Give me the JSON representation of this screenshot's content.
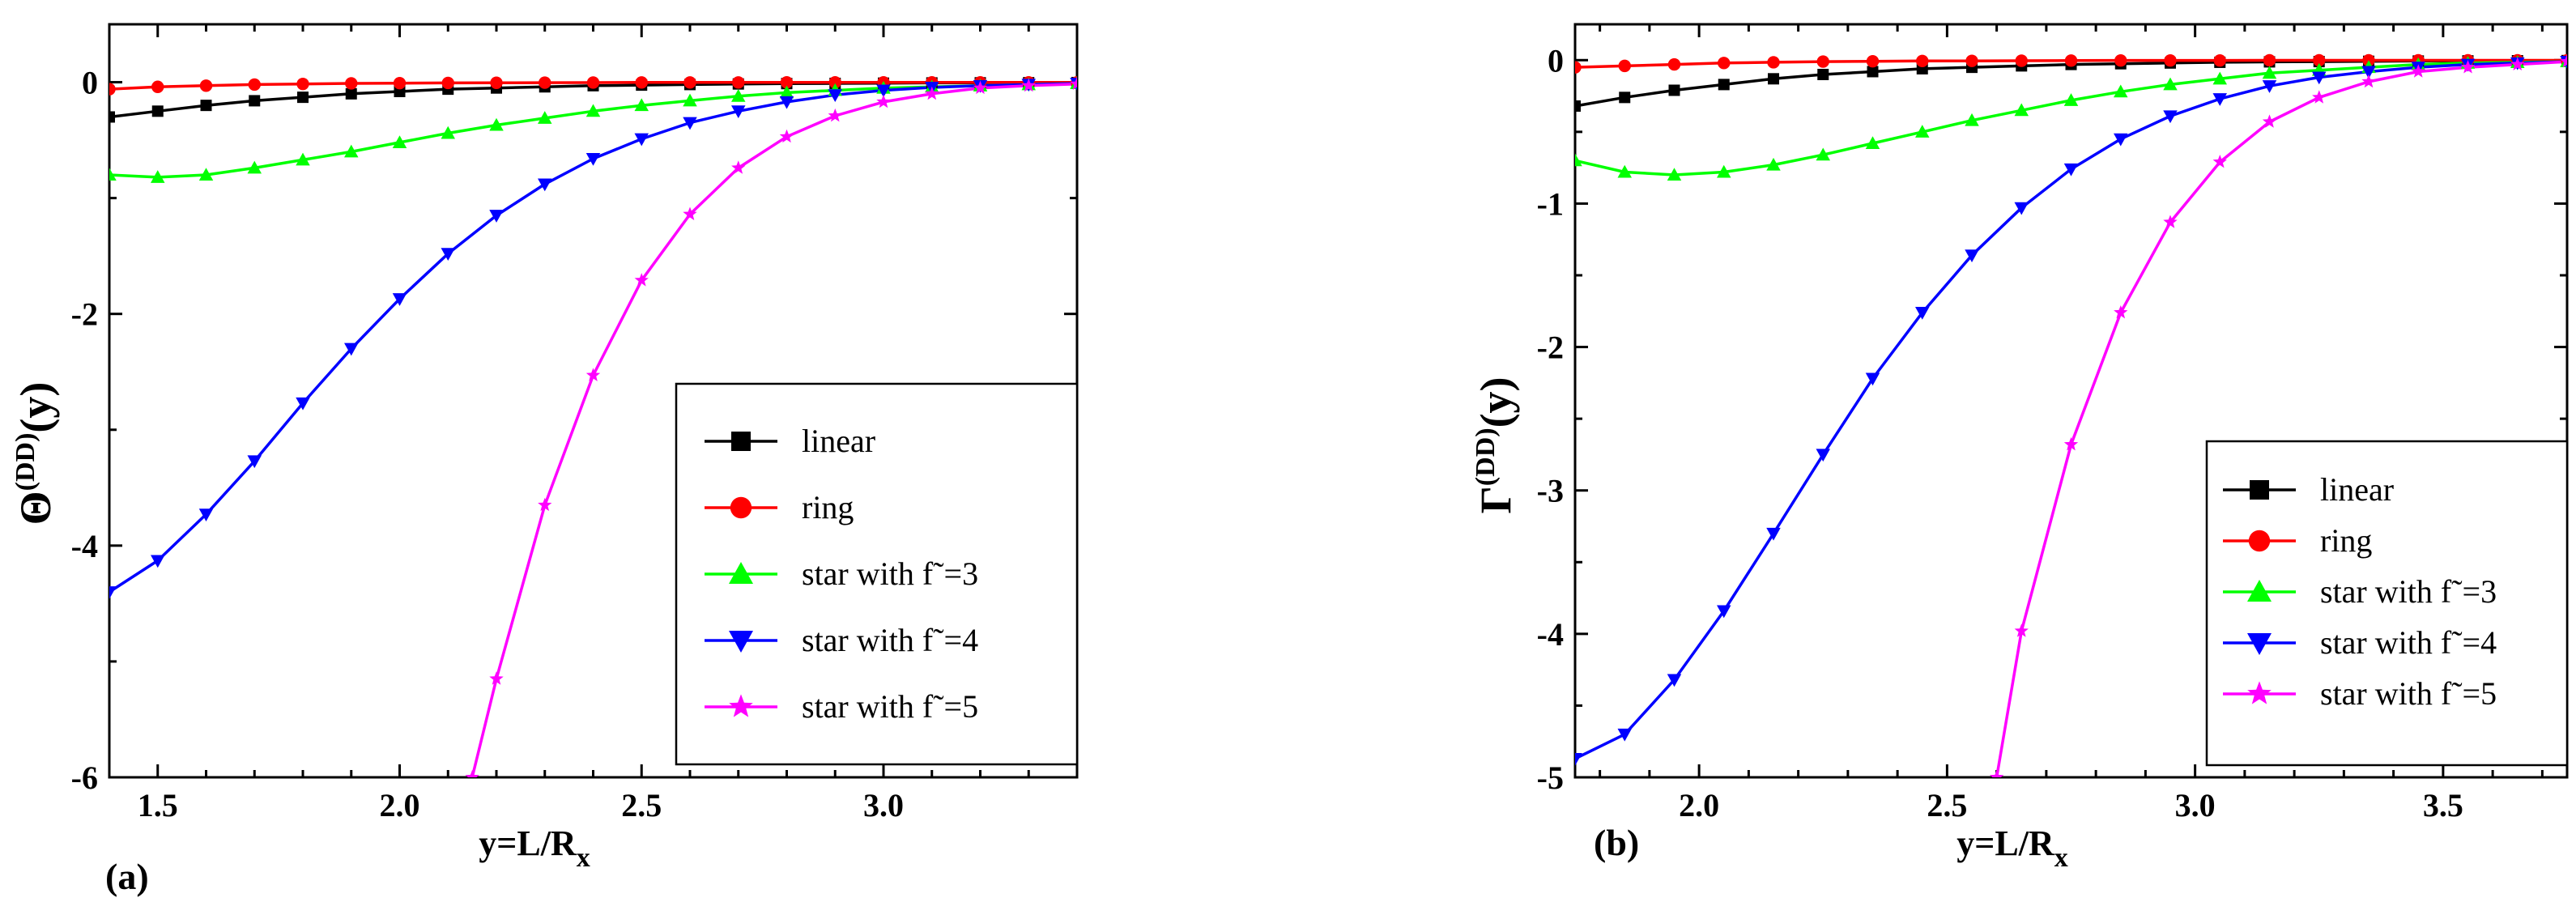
{
  "chart_data": [
    {
      "type": "line",
      "panel_label": "(a)",
      "ylabel": "Θ",
      "ylabel_sup": "(DD)",
      "ylabel_arg": "(y)",
      "xlabel": "y=L/R",
      "xlabel_sub": "x",
      "xlim": [
        1.4,
        3.4
      ],
      "ylim": [
        -6,
        0.5
      ],
      "xticks": [
        1.5,
        2.0,
        2.5,
        3.0
      ],
      "xtick_labels": [
        "1.5",
        "2.0",
        "2.5",
        "3.0"
      ],
      "yticks": [
        0,
        -2,
        -4,
        -6
      ],
      "ytick_labels": [
        "0",
        "-2",
        "-4",
        "-6"
      ],
      "legend_position": "lower-right",
      "series": [
        {
          "name": "linear",
          "color": "#000000",
          "marker": "square",
          "x": [
            1.4,
            1.5,
            1.6,
            1.7,
            1.8,
            1.9,
            2.0,
            2.1,
            2.2,
            2.3,
            2.4,
            2.5,
            2.6,
            2.7,
            2.8,
            2.9,
            3.0,
            3.1,
            3.2,
            3.3,
            3.4
          ],
          "y": [
            -0.3,
            -0.25,
            -0.2,
            -0.16,
            -0.13,
            -0.1,
            -0.08,
            -0.06,
            -0.05,
            -0.04,
            -0.03,
            -0.025,
            -0.02,
            -0.015,
            -0.012,
            -0.01,
            -0.008,
            -0.006,
            -0.005,
            -0.004,
            -0.003
          ]
        },
        {
          "name": "ring",
          "color": "#ff0000",
          "marker": "circle",
          "x": [
            1.4,
            1.5,
            1.6,
            1.7,
            1.8,
            1.9,
            2.0,
            2.1,
            2.2,
            2.3,
            2.4,
            2.5,
            2.6,
            2.7,
            2.8,
            2.9,
            3.0,
            3.1,
            3.2,
            3.3,
            3.4
          ],
          "y": [
            -0.06,
            -0.04,
            -0.03,
            -0.02,
            -0.015,
            -0.01,
            -0.008,
            -0.006,
            -0.005,
            -0.004,
            -0.003,
            -0.002,
            -0.002,
            -0.002,
            -0.001,
            -0.001,
            -0.001,
            -0.001,
            -0.001,
            -0.001,
            -0.001
          ]
        },
        {
          "name": "star with f˜=3",
          "color": "#00ff00",
          "marker": "triangle-up",
          "x": [
            1.4,
            1.5,
            1.6,
            1.7,
            1.8,
            1.9,
            2.0,
            2.1,
            2.2,
            2.3,
            2.4,
            2.5,
            2.6,
            2.7,
            2.8,
            2.9,
            3.0,
            3.1,
            3.2,
            3.3,
            3.4
          ],
          "y": [
            -0.8,
            -0.82,
            -0.8,
            -0.74,
            -0.67,
            -0.6,
            -0.52,
            -0.44,
            -0.37,
            -0.31,
            -0.25,
            -0.2,
            -0.16,
            -0.12,
            -0.09,
            -0.07,
            -0.05,
            -0.04,
            -0.03,
            -0.02,
            -0.01
          ]
        },
        {
          "name": "star with f˜=4",
          "color": "#0000ff",
          "marker": "triangle-down",
          "x": [
            1.4,
            1.5,
            1.6,
            1.7,
            1.8,
            1.9,
            2.0,
            2.1,
            2.2,
            2.3,
            2.4,
            2.5,
            2.6,
            2.7,
            2.8,
            2.9,
            3.0,
            3.1,
            3.2,
            3.3,
            3.4
          ],
          "y": [
            -4.4,
            -4.13,
            -3.73,
            -3.27,
            -2.77,
            -2.3,
            -1.87,
            -1.48,
            -1.15,
            -0.88,
            -0.66,
            -0.49,
            -0.35,
            -0.25,
            -0.17,
            -0.11,
            -0.07,
            -0.045,
            -0.03,
            -0.02,
            -0.01
          ]
        },
        {
          "name": "star with f˜=5",
          "color": "#ff00ff",
          "marker": "star",
          "x": [
            2.15,
            2.2,
            2.3,
            2.4,
            2.5,
            2.6,
            2.7,
            2.8,
            2.9,
            3.0,
            3.1,
            3.2,
            3.3,
            3.4
          ],
          "y": [
            -6.0,
            -5.15,
            -3.65,
            -2.53,
            -1.71,
            -1.14,
            -0.74,
            -0.47,
            -0.29,
            -0.17,
            -0.1,
            -0.05,
            -0.03,
            -0.015
          ]
        }
      ]
    },
    {
      "type": "line",
      "panel_label": "(b)",
      "ylabel": "Γ",
      "ylabel_sup": "(DD)",
      "ylabel_arg": "(y)",
      "xlabel": "y=L/R",
      "xlabel_sub": "x",
      "xlim": [
        1.75,
        3.75
      ],
      "ylim": [
        -5,
        0.25
      ],
      "xticks": [
        2.0,
        2.5,
        3.0,
        3.5
      ],
      "xtick_labels": [
        "2.0",
        "2.5",
        "3.0",
        "3.5"
      ],
      "yticks": [
        0,
        -1,
        -2,
        -3,
        -4,
        -5
      ],
      "ytick_labels": [
        "0",
        "-1",
        "-2",
        "-3",
        "-4",
        "-5"
      ],
      "legend_position": "lower-right",
      "series": [
        {
          "name": "linear",
          "color": "#000000",
          "marker": "square",
          "x": [
            1.75,
            1.85,
            1.95,
            2.05,
            2.15,
            2.25,
            2.35,
            2.45,
            2.55,
            2.65,
            2.75,
            2.85,
            2.95,
            3.05,
            3.15,
            3.25,
            3.35,
            3.45,
            3.55,
            3.65,
            3.75
          ],
          "y": [
            -0.32,
            -0.26,
            -0.21,
            -0.17,
            -0.13,
            -0.1,
            -0.08,
            -0.06,
            -0.05,
            -0.04,
            -0.03,
            -0.025,
            -0.02,
            -0.015,
            -0.012,
            -0.01,
            -0.008,
            -0.006,
            -0.005,
            -0.004,
            -0.003
          ]
        },
        {
          "name": "ring",
          "color": "#ff0000",
          "marker": "circle",
          "x": [
            1.75,
            1.85,
            1.95,
            2.05,
            2.15,
            2.25,
            2.35,
            2.45,
            2.55,
            2.65,
            2.75,
            2.85,
            2.95,
            3.05,
            3.15,
            3.25,
            3.35,
            3.45,
            3.55,
            3.65,
            3.75
          ],
          "y": [
            -0.05,
            -0.04,
            -0.03,
            -0.02,
            -0.015,
            -0.01,
            -0.008,
            -0.006,
            -0.005,
            -0.004,
            -0.003,
            -0.002,
            -0.002,
            -0.002,
            -0.001,
            -0.001,
            -0.001,
            -0.001,
            -0.001,
            -0.001,
            -0.001
          ]
        },
        {
          "name": "star with f˜=3",
          "color": "#00ff00",
          "marker": "triangle-up",
          "x": [
            1.75,
            1.85,
            1.95,
            2.05,
            2.15,
            2.25,
            2.35,
            2.45,
            2.55,
            2.65,
            2.75,
            2.85,
            2.95,
            3.05,
            3.15,
            3.25,
            3.35,
            3.45,
            3.55,
            3.65,
            3.75
          ],
          "y": [
            -0.7,
            -0.78,
            -0.8,
            -0.78,
            -0.73,
            -0.66,
            -0.58,
            -0.5,
            -0.42,
            -0.35,
            -0.28,
            -0.22,
            -0.17,
            -0.13,
            -0.09,
            -0.07,
            -0.05,
            -0.03,
            -0.02,
            -0.015,
            -0.01
          ]
        },
        {
          "name": "star with f˜=4",
          "color": "#0000ff",
          "marker": "triangle-down",
          "x": [
            1.75,
            1.85,
            1.95,
            2.05,
            2.15,
            2.25,
            2.35,
            2.45,
            2.55,
            2.65,
            2.75,
            2.85,
            2.95,
            3.05,
            3.15,
            3.25,
            3.35,
            3.45,
            3.55,
            3.65,
            3.75
          ],
          "y": [
            -4.87,
            -4.7,
            -4.32,
            -3.84,
            -3.3,
            -2.75,
            -2.22,
            -1.76,
            -1.36,
            -1.03,
            -0.76,
            -0.55,
            -0.39,
            -0.27,
            -0.18,
            -0.12,
            -0.08,
            -0.05,
            -0.03,
            -0.02,
            -0.01
          ]
        },
        {
          "name": "star with f˜=5",
          "color": "#ff00ff",
          "marker": "star",
          "x": [
            2.6,
            2.65,
            2.75,
            2.85,
            2.95,
            3.05,
            3.15,
            3.25,
            3.35,
            3.45,
            3.55,
            3.65,
            3.75
          ],
          "y": [
            -5.0,
            -3.98,
            -2.68,
            -1.76,
            -1.13,
            -0.71,
            -0.43,
            -0.26,
            -0.15,
            -0.08,
            -0.05,
            -0.03,
            -0.01
          ]
        }
      ]
    }
  ]
}
